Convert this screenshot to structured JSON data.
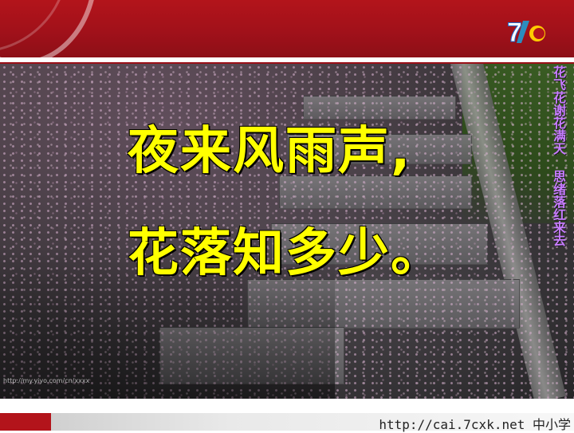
{
  "banner": {
    "brand_color": "#b3141b",
    "logo_text": "7c"
  },
  "poem": {
    "line1": "夜来风雨声,",
    "line2": "花落知多少。",
    "text_color": "#ffff00"
  },
  "side_caption": {
    "text": "花飞花谢花满天 思绪落红来去",
    "text_color": "#c77cff"
  },
  "photo": {
    "watermark": "http://my.yiyo.com/cn/xxxx"
  },
  "footer": {
    "url": "http://cai.7cxk.net 中小学"
  }
}
